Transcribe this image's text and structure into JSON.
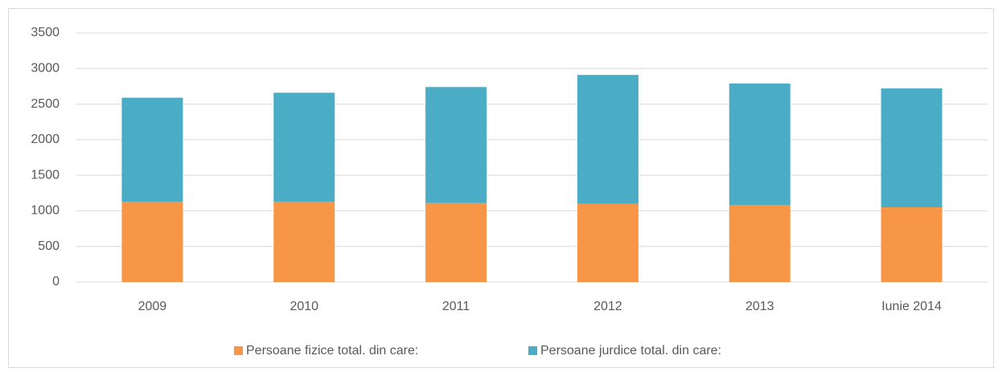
{
  "chart_data": {
    "type": "stacked_bar",
    "categories": [
      "2009",
      "2010",
      "2011",
      "2012",
      "2013",
      "Iunie 2014"
    ],
    "series": [
      {
        "name": "Persoane fizice total. din care:",
        "color": "#f79646",
        "values": [
          1130,
          1130,
          1110,
          1100,
          1080,
          1050
        ]
      },
      {
        "name": "Persoane jurdice total. din care:",
        "color": "#4bacc6",
        "values": [
          1460,
          1530,
          1630,
          1810,
          1710,
          1670
        ]
      }
    ],
    "ylim": [
      0,
      3500
    ],
    "yticks": [
      0,
      500,
      1000,
      1500,
      2000,
      2500,
      3000,
      3500
    ],
    "grid": true,
    "legend": "bottom"
  }
}
